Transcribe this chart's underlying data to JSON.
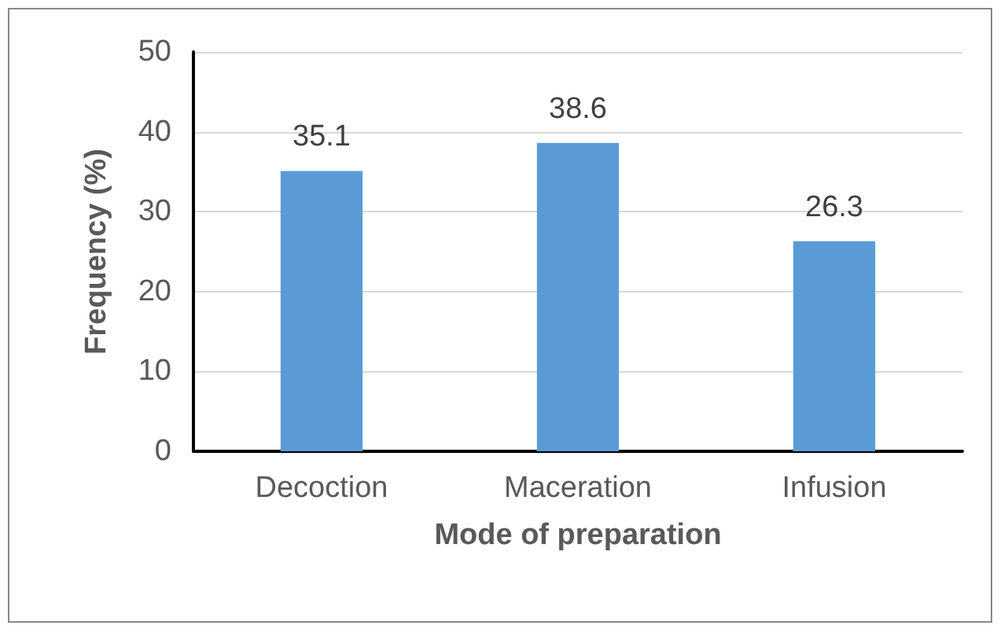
{
  "chart_data": {
    "type": "bar",
    "xlabel": "Mode of preparation",
    "ylabel": "Frequency (%)",
    "categories": [
      "Decoction",
      "Maceration",
      "Infusion"
    ],
    "values": [
      35.1,
      38.6,
      26.3
    ],
    "color": "#5b9bd5",
    "ylim": [
      0,
      50
    ],
    "yticks": [
      0,
      10,
      20,
      30,
      40,
      50
    ],
    "grid": "y",
    "data_labels": true
  }
}
